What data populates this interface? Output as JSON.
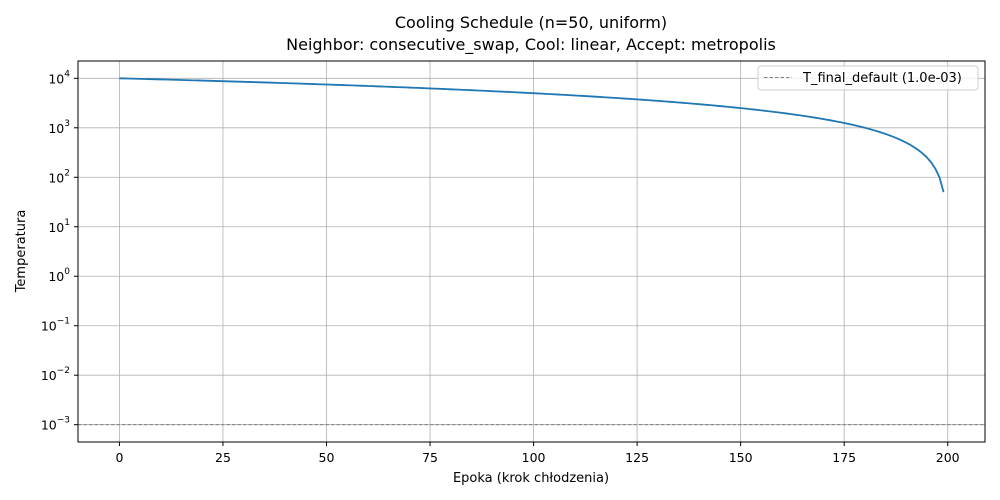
{
  "chart_data": {
    "type": "line",
    "title": "Cooling Schedule (n=50, uniform)",
    "subtitle": "Neighbor: consecutive_swap, Cool: linear, Accept: metropolis",
    "xlabel": "Epoka (krok chłodzenia)",
    "ylabel": "Temperatura",
    "xlim": [
      -10,
      209
    ],
    "ylim_log10": [
      -3.35,
      4.35
    ],
    "yscale": "log",
    "grid": true,
    "legend_position": "top-right",
    "x_ticks": [
      0,
      25,
      50,
      75,
      100,
      125,
      150,
      175,
      200
    ],
    "y_ticks": [
      {
        "exp": -3,
        "base": "10",
        "sup": "−3"
      },
      {
        "exp": -2,
        "base": "10",
        "sup": "−2"
      },
      {
        "exp": -1,
        "base": "10",
        "sup": "−1"
      },
      {
        "exp": 0,
        "base": "10",
        "sup": "0"
      },
      {
        "exp": 1,
        "base": "10",
        "sup": "1"
      },
      {
        "exp": 2,
        "base": "10",
        "sup": "2"
      },
      {
        "exp": 3,
        "base": "10",
        "sup": "3"
      },
      {
        "exp": 4,
        "base": "10",
        "sup": "4"
      }
    ],
    "series": [
      {
        "type": "line",
        "color": "#1f77b4",
        "T0": 10000,
        "epochs": 200,
        "x_start": 0,
        "x_end": 199,
        "formula": "T = T0 * (1 - epoch / epochs)"
      }
    ],
    "reference_lines": [
      {
        "name": "T_final_default (1.0e-03)",
        "y": 0.001,
        "color": "#808080",
        "style": "dashed"
      }
    ]
  }
}
